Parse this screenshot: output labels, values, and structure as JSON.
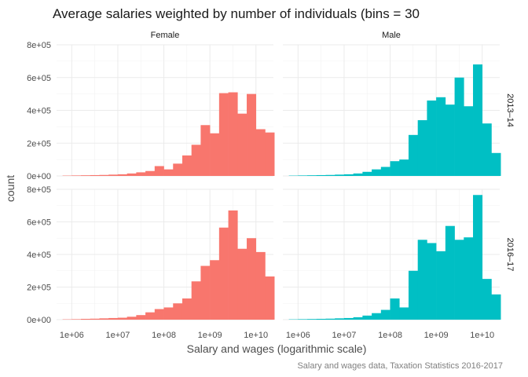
{
  "chart_data": {
    "type": "bar",
    "title": "Average salaries weighted by number of individuals (bins = 30",
    "xlabel": "Salary and wages (logarithmic scale)",
    "ylabel": "count",
    "caption": "Salary and wages data, Taxation Statistics 2016-2017",
    "x_scale": "log10",
    "x_ticks": [
      {
        "value": 1000000,
        "label": "1e+06"
      },
      {
        "value": 10000000,
        "label": "1e+07"
      },
      {
        "value": 100000000,
        "label": "1e+08"
      },
      {
        "value": 1000000000,
        "label": "1e+09"
      },
      {
        "value": 10000000000,
        "label": "1e+10"
      }
    ],
    "x_range_log10": [
      5.67,
      10.38
    ],
    "ylim": [
      0,
      800000
    ],
    "y_ticks": [
      {
        "value": 0,
        "label": "0e+00"
      },
      {
        "value": 200000,
        "label": "2e+05"
      },
      {
        "value": 400000,
        "label": "4e+05"
      },
      {
        "value": 600000,
        "label": "6e+05"
      },
      {
        "value": 800000,
        "label": "8e+05"
      }
    ],
    "grid": true,
    "col_facets": [
      "Female",
      "Male"
    ],
    "row_facets": [
      "2013–14",
      "2016–17"
    ],
    "panels": [
      {
        "col": "Female",
        "row": "2013–14",
        "color": "#F8766D",
        "bins": [
          {
            "x0": 5.8,
            "x1": 6.0,
            "count": 2000
          },
          {
            "x0": 6.0,
            "x1": 6.2,
            "count": 3000
          },
          {
            "x0": 6.2,
            "x1": 6.4,
            "count": 4000
          },
          {
            "x0": 6.4,
            "x1": 6.6,
            "count": 5000
          },
          {
            "x0": 6.6,
            "x1": 6.8,
            "count": 6000
          },
          {
            "x0": 6.8,
            "x1": 7.0,
            "count": 8000
          },
          {
            "x0": 7.0,
            "x1": 7.2,
            "count": 10000
          },
          {
            "x0": 7.2,
            "x1": 7.4,
            "count": 15000
          },
          {
            "x0": 7.4,
            "x1": 7.6,
            "count": 22000
          },
          {
            "x0": 7.6,
            "x1": 7.8,
            "count": 30000
          },
          {
            "x0": 7.8,
            "x1": 8.0,
            "count": 60000
          },
          {
            "x0": 8.0,
            "x1": 8.2,
            "count": 40000
          },
          {
            "x0": 8.2,
            "x1": 8.4,
            "count": 75000
          },
          {
            "x0": 8.4,
            "x1": 8.6,
            "count": 125000
          },
          {
            "x0": 8.6,
            "x1": 8.8,
            "count": 190000
          },
          {
            "x0": 8.8,
            "x1": 9.0,
            "count": 310000
          },
          {
            "x0": 9.0,
            "x1": 9.2,
            "count": 260000
          },
          {
            "x0": 9.2,
            "x1": 9.4,
            "count": 505000
          },
          {
            "x0": 9.4,
            "x1": 9.6,
            "count": 510000
          },
          {
            "x0": 9.6,
            "x1": 9.8,
            "count": 380000
          },
          {
            "x0": 9.8,
            "x1": 10.0,
            "count": 500000
          },
          {
            "x0": 10.0,
            "x1": 10.2,
            "count": 285000
          },
          {
            "x0": 10.2,
            "x1": 10.4,
            "count": 265000
          }
        ]
      },
      {
        "col": "Male",
        "row": "2013–14",
        "color": "#00BFC4",
        "bins": [
          {
            "x0": 5.8,
            "x1": 6.0,
            "count": 2000
          },
          {
            "x0": 6.0,
            "x1": 6.2,
            "count": 3000
          },
          {
            "x0": 6.2,
            "x1": 6.4,
            "count": 4000
          },
          {
            "x0": 6.4,
            "x1": 6.6,
            "count": 5000
          },
          {
            "x0": 6.6,
            "x1": 6.8,
            "count": 6000
          },
          {
            "x0": 6.8,
            "x1": 7.0,
            "count": 8000
          },
          {
            "x0": 7.0,
            "x1": 7.2,
            "count": 10000
          },
          {
            "x0": 7.2,
            "x1": 7.4,
            "count": 15000
          },
          {
            "x0": 7.4,
            "x1": 7.6,
            "count": 25000
          },
          {
            "x0": 7.6,
            "x1": 7.8,
            "count": 40000
          },
          {
            "x0": 7.8,
            "x1": 8.0,
            "count": 55000
          },
          {
            "x0": 8.0,
            "x1": 8.2,
            "count": 90000
          },
          {
            "x0": 8.2,
            "x1": 8.4,
            "count": 100000
          },
          {
            "x0": 8.4,
            "x1": 8.6,
            "count": 250000
          },
          {
            "x0": 8.6,
            "x1": 8.8,
            "count": 340000
          },
          {
            "x0": 8.8,
            "x1": 9.0,
            "count": 460000
          },
          {
            "x0": 9.0,
            "x1": 9.2,
            "count": 480000
          },
          {
            "x0": 9.2,
            "x1": 9.4,
            "count": 435000
          },
          {
            "x0": 9.4,
            "x1": 9.6,
            "count": 600000
          },
          {
            "x0": 9.6,
            "x1": 9.8,
            "count": 425000
          },
          {
            "x0": 9.8,
            "x1": 10.0,
            "count": 680000
          },
          {
            "x0": 10.0,
            "x1": 10.2,
            "count": 320000
          },
          {
            "x0": 10.2,
            "x1": 10.4,
            "count": 140000
          }
        ]
      },
      {
        "col": "Female",
        "row": "2016–17",
        "color": "#F8766D",
        "bins": [
          {
            "x0": 5.8,
            "x1": 6.0,
            "count": 2000
          },
          {
            "x0": 6.0,
            "x1": 6.2,
            "count": 3000
          },
          {
            "x0": 6.2,
            "x1": 6.4,
            "count": 5000
          },
          {
            "x0": 6.4,
            "x1": 6.6,
            "count": 6000
          },
          {
            "x0": 6.6,
            "x1": 6.8,
            "count": 8000
          },
          {
            "x0": 6.8,
            "x1": 7.0,
            "count": 10000
          },
          {
            "x0": 7.0,
            "x1": 7.2,
            "count": 12000
          },
          {
            "x0": 7.2,
            "x1": 7.4,
            "count": 18000
          },
          {
            "x0": 7.4,
            "x1": 7.6,
            "count": 28000
          },
          {
            "x0": 7.6,
            "x1": 7.8,
            "count": 45000
          },
          {
            "x0": 7.8,
            "x1": 8.0,
            "count": 65000
          },
          {
            "x0": 8.0,
            "x1": 8.2,
            "count": 75000
          },
          {
            "x0": 8.2,
            "x1": 8.4,
            "count": 100000
          },
          {
            "x0": 8.4,
            "x1": 8.6,
            "count": 130000
          },
          {
            "x0": 8.6,
            "x1": 8.8,
            "count": 235000
          },
          {
            "x0": 8.8,
            "x1": 9.0,
            "count": 330000
          },
          {
            "x0": 9.0,
            "x1": 9.2,
            "count": 365000
          },
          {
            "x0": 9.2,
            "x1": 9.4,
            "count": 565000
          },
          {
            "x0": 9.4,
            "x1": 9.6,
            "count": 670000
          },
          {
            "x0": 9.6,
            "x1": 9.8,
            "count": 435000
          },
          {
            "x0": 9.8,
            "x1": 10.0,
            "count": 500000
          },
          {
            "x0": 10.0,
            "x1": 10.2,
            "count": 415000
          },
          {
            "x0": 10.2,
            "x1": 10.4,
            "count": 265000
          }
        ]
      },
      {
        "col": "Male",
        "row": "2016–17",
        "color": "#00BFC4",
        "bins": [
          {
            "x0": 5.8,
            "x1": 6.0,
            "count": 2000
          },
          {
            "x0": 6.0,
            "x1": 6.2,
            "count": 3000
          },
          {
            "x0": 6.2,
            "x1": 6.4,
            "count": 4000
          },
          {
            "x0": 6.4,
            "x1": 6.6,
            "count": 5000
          },
          {
            "x0": 6.6,
            "x1": 6.8,
            "count": 6000
          },
          {
            "x0": 6.8,
            "x1": 7.0,
            "count": 8000
          },
          {
            "x0": 7.0,
            "x1": 7.2,
            "count": 10000
          },
          {
            "x0": 7.2,
            "x1": 7.4,
            "count": 15000
          },
          {
            "x0": 7.4,
            "x1": 7.6,
            "count": 25000
          },
          {
            "x0": 7.6,
            "x1": 7.8,
            "count": 40000
          },
          {
            "x0": 7.8,
            "x1": 8.0,
            "count": 60000
          },
          {
            "x0": 8.0,
            "x1": 8.2,
            "count": 130000
          },
          {
            "x0": 8.2,
            "x1": 8.4,
            "count": 75000
          },
          {
            "x0": 8.4,
            "x1": 8.6,
            "count": 300000
          },
          {
            "x0": 8.6,
            "x1": 8.8,
            "count": 490000
          },
          {
            "x0": 8.8,
            "x1": 9.0,
            "count": 470000
          },
          {
            "x0": 9.0,
            "x1": 9.2,
            "count": 420000
          },
          {
            "x0": 9.2,
            "x1": 9.4,
            "count": 575000
          },
          {
            "x0": 9.4,
            "x1": 9.6,
            "count": 490000
          },
          {
            "x0": 9.6,
            "x1": 9.8,
            "count": 505000
          },
          {
            "x0": 9.8,
            "x1": 10.0,
            "count": 765000
          },
          {
            "x0": 10.0,
            "x1": 10.2,
            "count": 250000
          },
          {
            "x0": 10.2,
            "x1": 10.4,
            "count": 155000
          }
        ]
      }
    ]
  }
}
